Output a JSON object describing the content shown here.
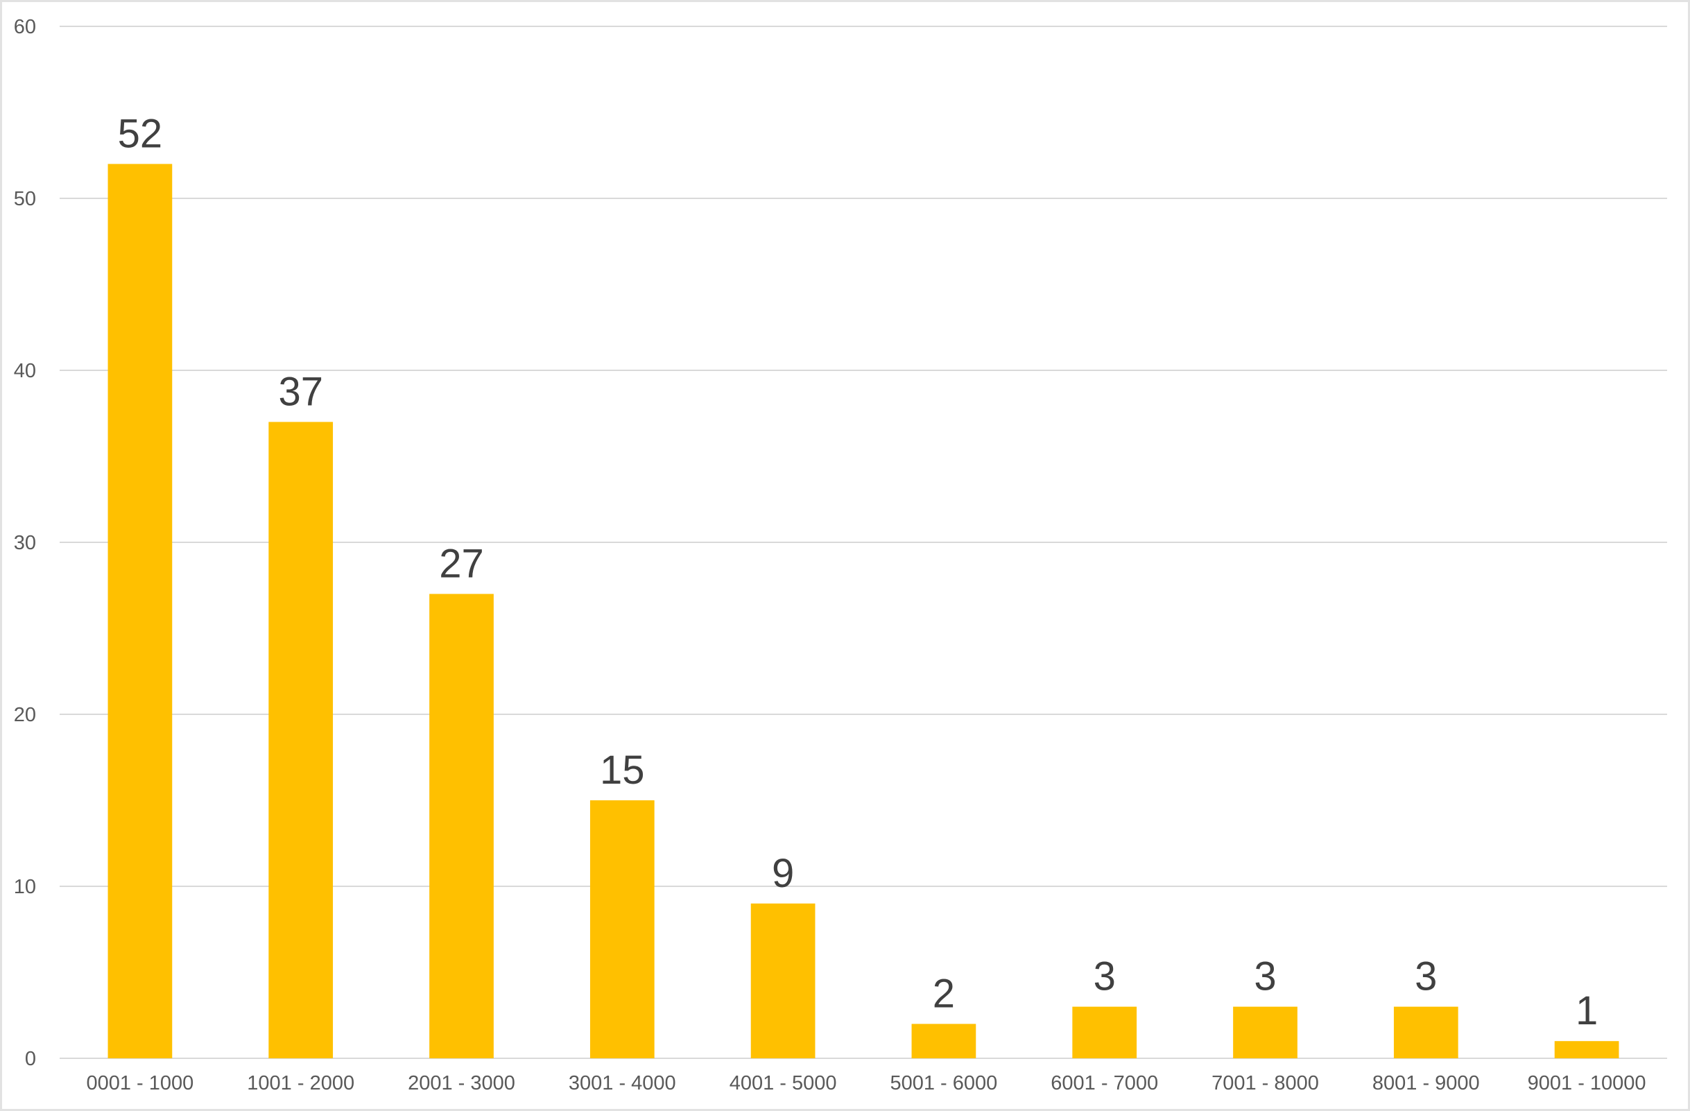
{
  "chart_data": {
    "type": "bar",
    "title": "",
    "xlabel": "",
    "ylabel": "",
    "categories": [
      "0001 - 1000",
      "1001 - 2000",
      "2001 - 3000",
      "3001 - 4000",
      "4001 - 5000",
      "5001 - 6000",
      "6001 - 7000",
      "7001 - 8000",
      "8001 - 9000",
      "9001 - 10000"
    ],
    "values": [
      52,
      37,
      27,
      15,
      9,
      2,
      3,
      3,
      3,
      1
    ],
    "ylim": [
      0,
      60
    ],
    "yticks": [
      0,
      10,
      20,
      30,
      40,
      50,
      60
    ],
    "grid": true,
    "legend": "none",
    "data_labels": true,
    "colors": {
      "bar": "#FFC000",
      "grid": "#D9D9D9",
      "tick_text": "#595959",
      "data_label_text": "#404040"
    }
  }
}
